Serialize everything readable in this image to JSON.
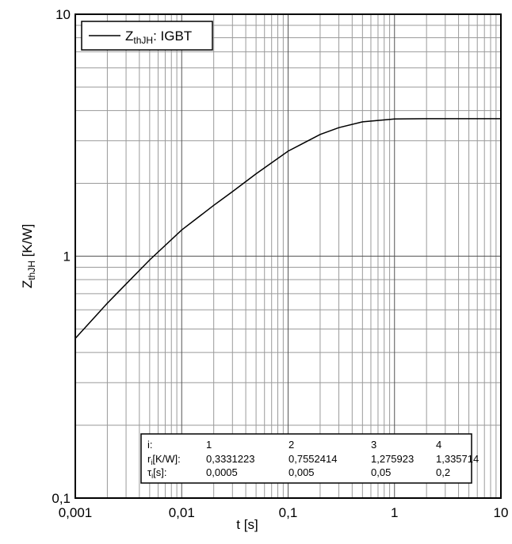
{
  "chart_data": {
    "type": "line",
    "xlabel": "t [s]",
    "ylabel": {
      "main": "Z",
      "sub": "thJH",
      "rest": " [K/W]"
    },
    "x": [
      0.001,
      0.002,
      0.003,
      0.005,
      0.01,
      0.02,
      0.03,
      0.05,
      0.1,
      0.2,
      0.3,
      0.5,
      1,
      2,
      5,
      10
    ],
    "series": [
      {
        "name": {
          "main": "Z",
          "sub": "thJH",
          "rest": ": IGBT"
        },
        "color": "#000000",
        "values": [
          0.457,
          0.639,
          0.767,
          0.965,
          1.283,
          1.622,
          1.848,
          2.19,
          2.717,
          3.185,
          3.399,
          3.59,
          3.691,
          3.7,
          3.7,
          3.7
        ]
      }
    ],
    "xlim": [
      0.001,
      10
    ],
    "ylim": [
      0.1,
      10
    ],
    "xticks": [
      {
        "value": 0.001,
        "label": "0,001"
      },
      {
        "value": 0.01,
        "label": "0,01"
      },
      {
        "value": 0.1,
        "label": "0,1"
      },
      1,
      10
    ],
    "yticks": [
      {
        "value": 0.1,
        "label": "0,1"
      },
      1,
      10
    ],
    "log_x": true,
    "log_y": true,
    "grid": true,
    "minor_grid": true,
    "legend": "upper left",
    "param_table": {
      "header": [
        "i:",
        "1",
        "2",
        "3",
        "4"
      ],
      "rows": [
        {
          "label": {
            "main": "r",
            "sub": "i",
            "rest": "[K/W]:"
          },
          "values": [
            "0,3331223",
            "0,7552414",
            "1,275923",
            "1,335714"
          ]
        },
        {
          "label": {
            "main": "τ",
            "sub": "i",
            "rest": "[s]:"
          },
          "values": [
            "0,0005",
            "0,005",
            "0,05",
            "0,2"
          ]
        }
      ]
    }
  }
}
